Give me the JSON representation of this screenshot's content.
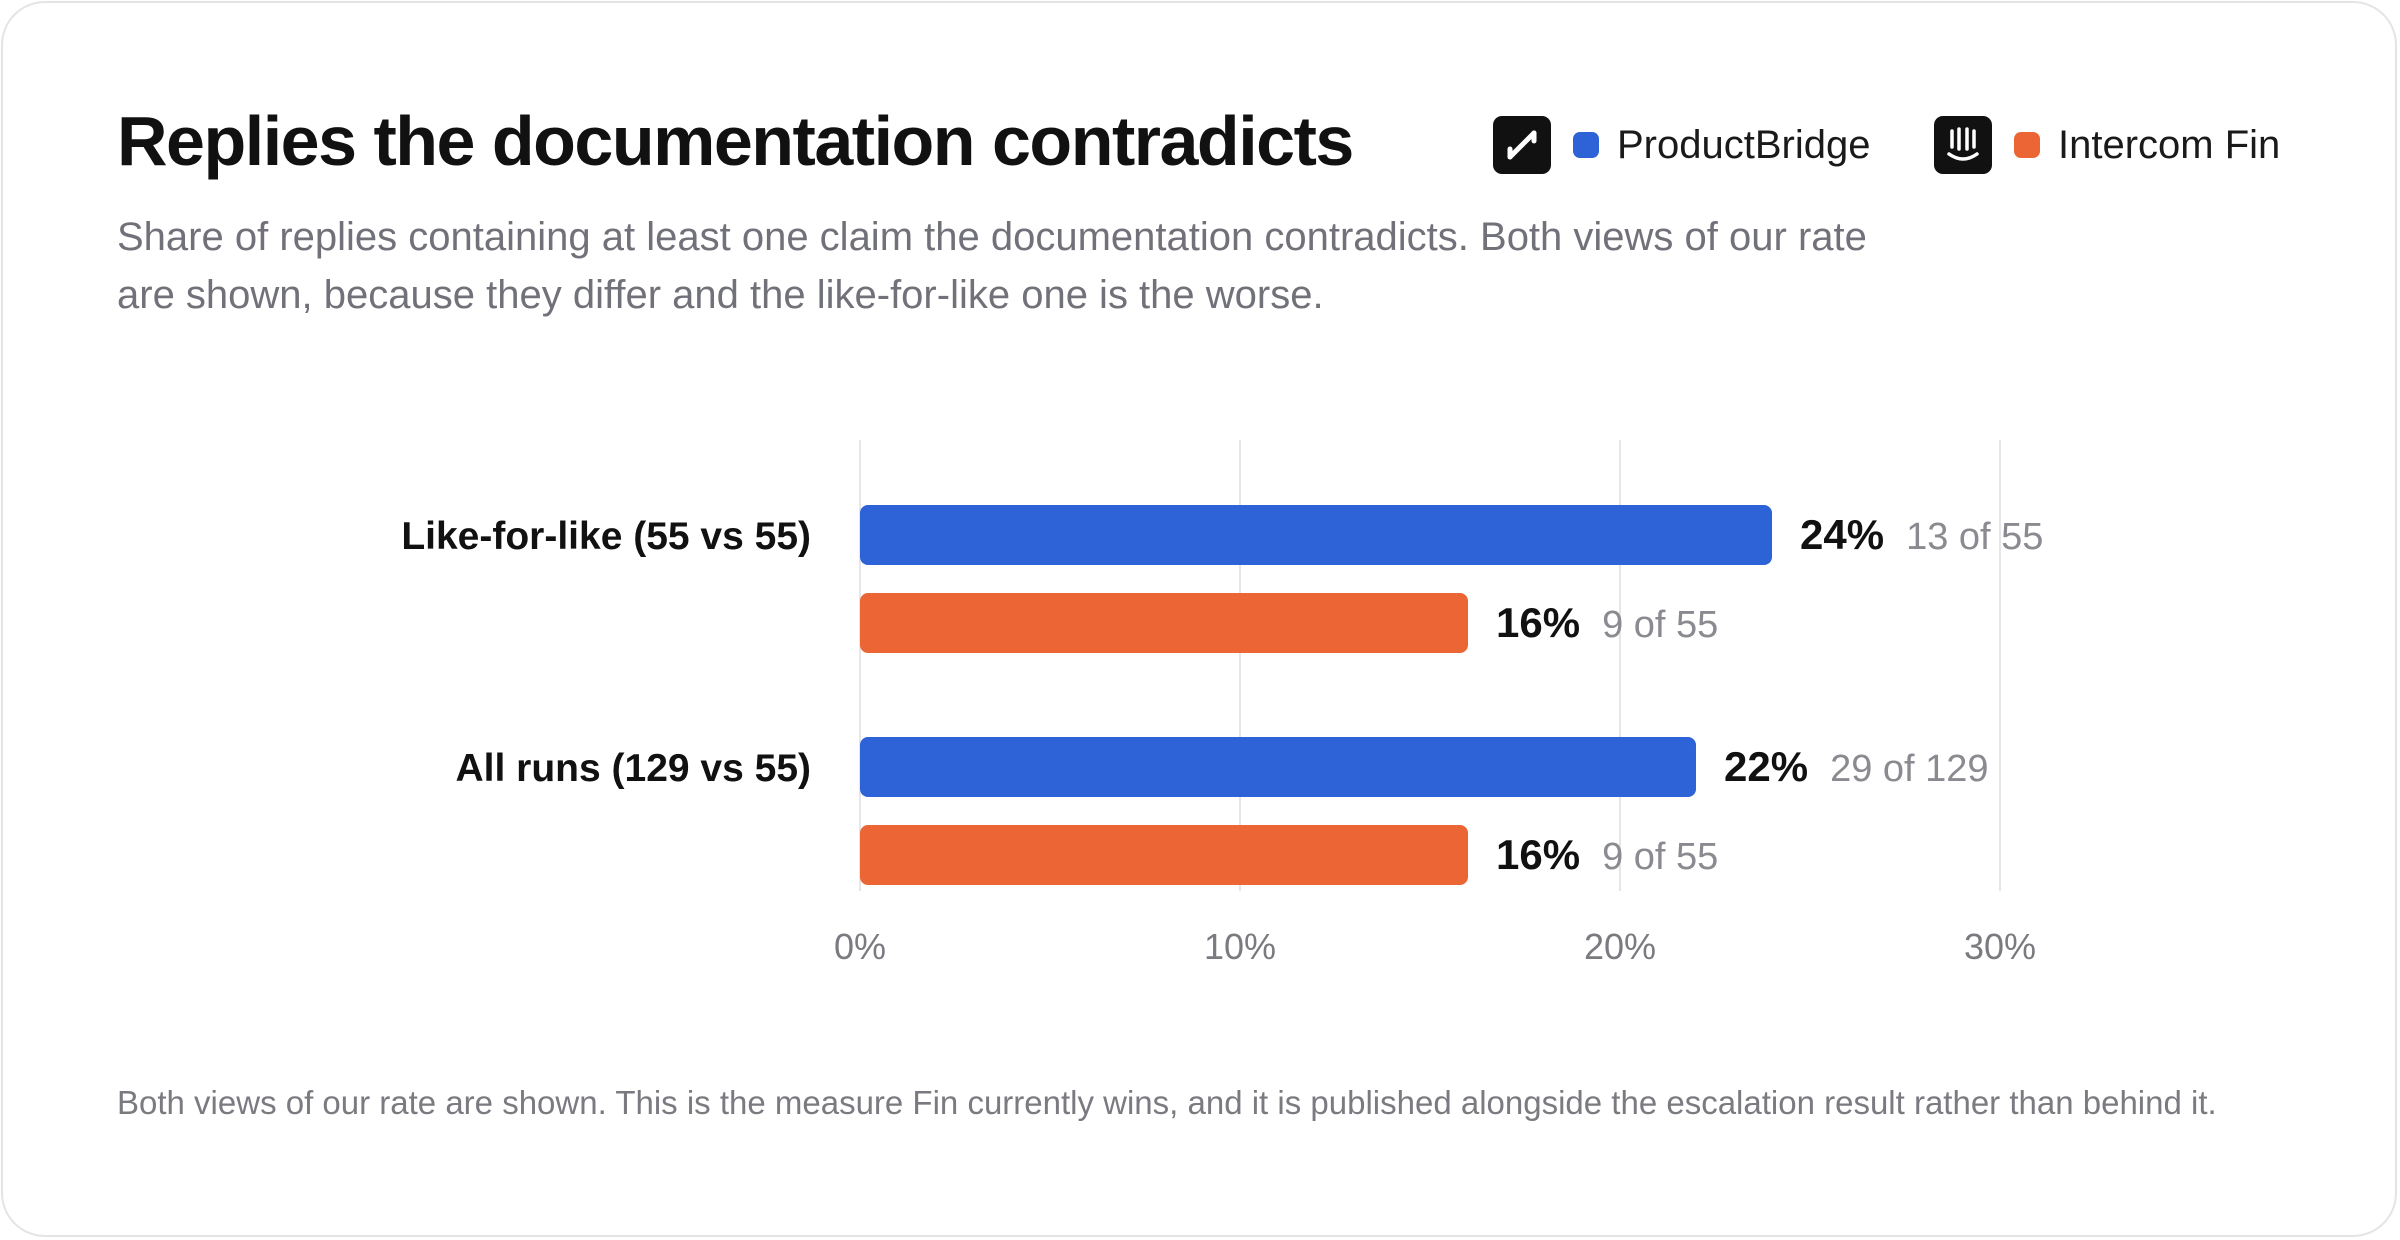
{
  "title": "Replies the documentation contradicts",
  "subtitle": "Share of replies containing at least one claim the documentation contradicts. Both views of our rate are shown, because they differ and the like-for-like one is the worse.",
  "legend": [
    {
      "label": "ProductBridge",
      "color": "#2d63d6",
      "icon": "productbridge-logo-icon"
    },
    {
      "label": "Intercom Fin",
      "color": "#eb6634",
      "icon": "intercom-logo-icon"
    }
  ],
  "footnote": "Both views of our rate are shown. This is the measure Fin currently wins, and it is published alongside the escalation result rather than behind it.",
  "chart_data": {
    "type": "bar",
    "orientation": "horizontal",
    "categories": [
      "Like-for-like (55 vs 55)",
      "All runs (129 vs 55)"
    ],
    "series": [
      {
        "name": "ProductBridge",
        "color": "#2d63d6",
        "values": [
          24,
          22
        ],
        "labels": [
          "24%",
          "22%"
        ],
        "counts": [
          "13 of 55",
          "29 of 129"
        ]
      },
      {
        "name": "Intercom Fin",
        "color": "#eb6634",
        "values": [
          16,
          16
        ],
        "labels": [
          "16%",
          "16%"
        ],
        "counts": [
          "9 of 55",
          "9 of 55"
        ]
      }
    ],
    "xlim": [
      0,
      30
    ],
    "xticks": [
      0,
      10,
      20,
      30
    ],
    "xtick_labels": [
      "0%",
      "10%",
      "20%",
      "30%"
    ],
    "grid": true,
    "legend_position": "top-right"
  }
}
